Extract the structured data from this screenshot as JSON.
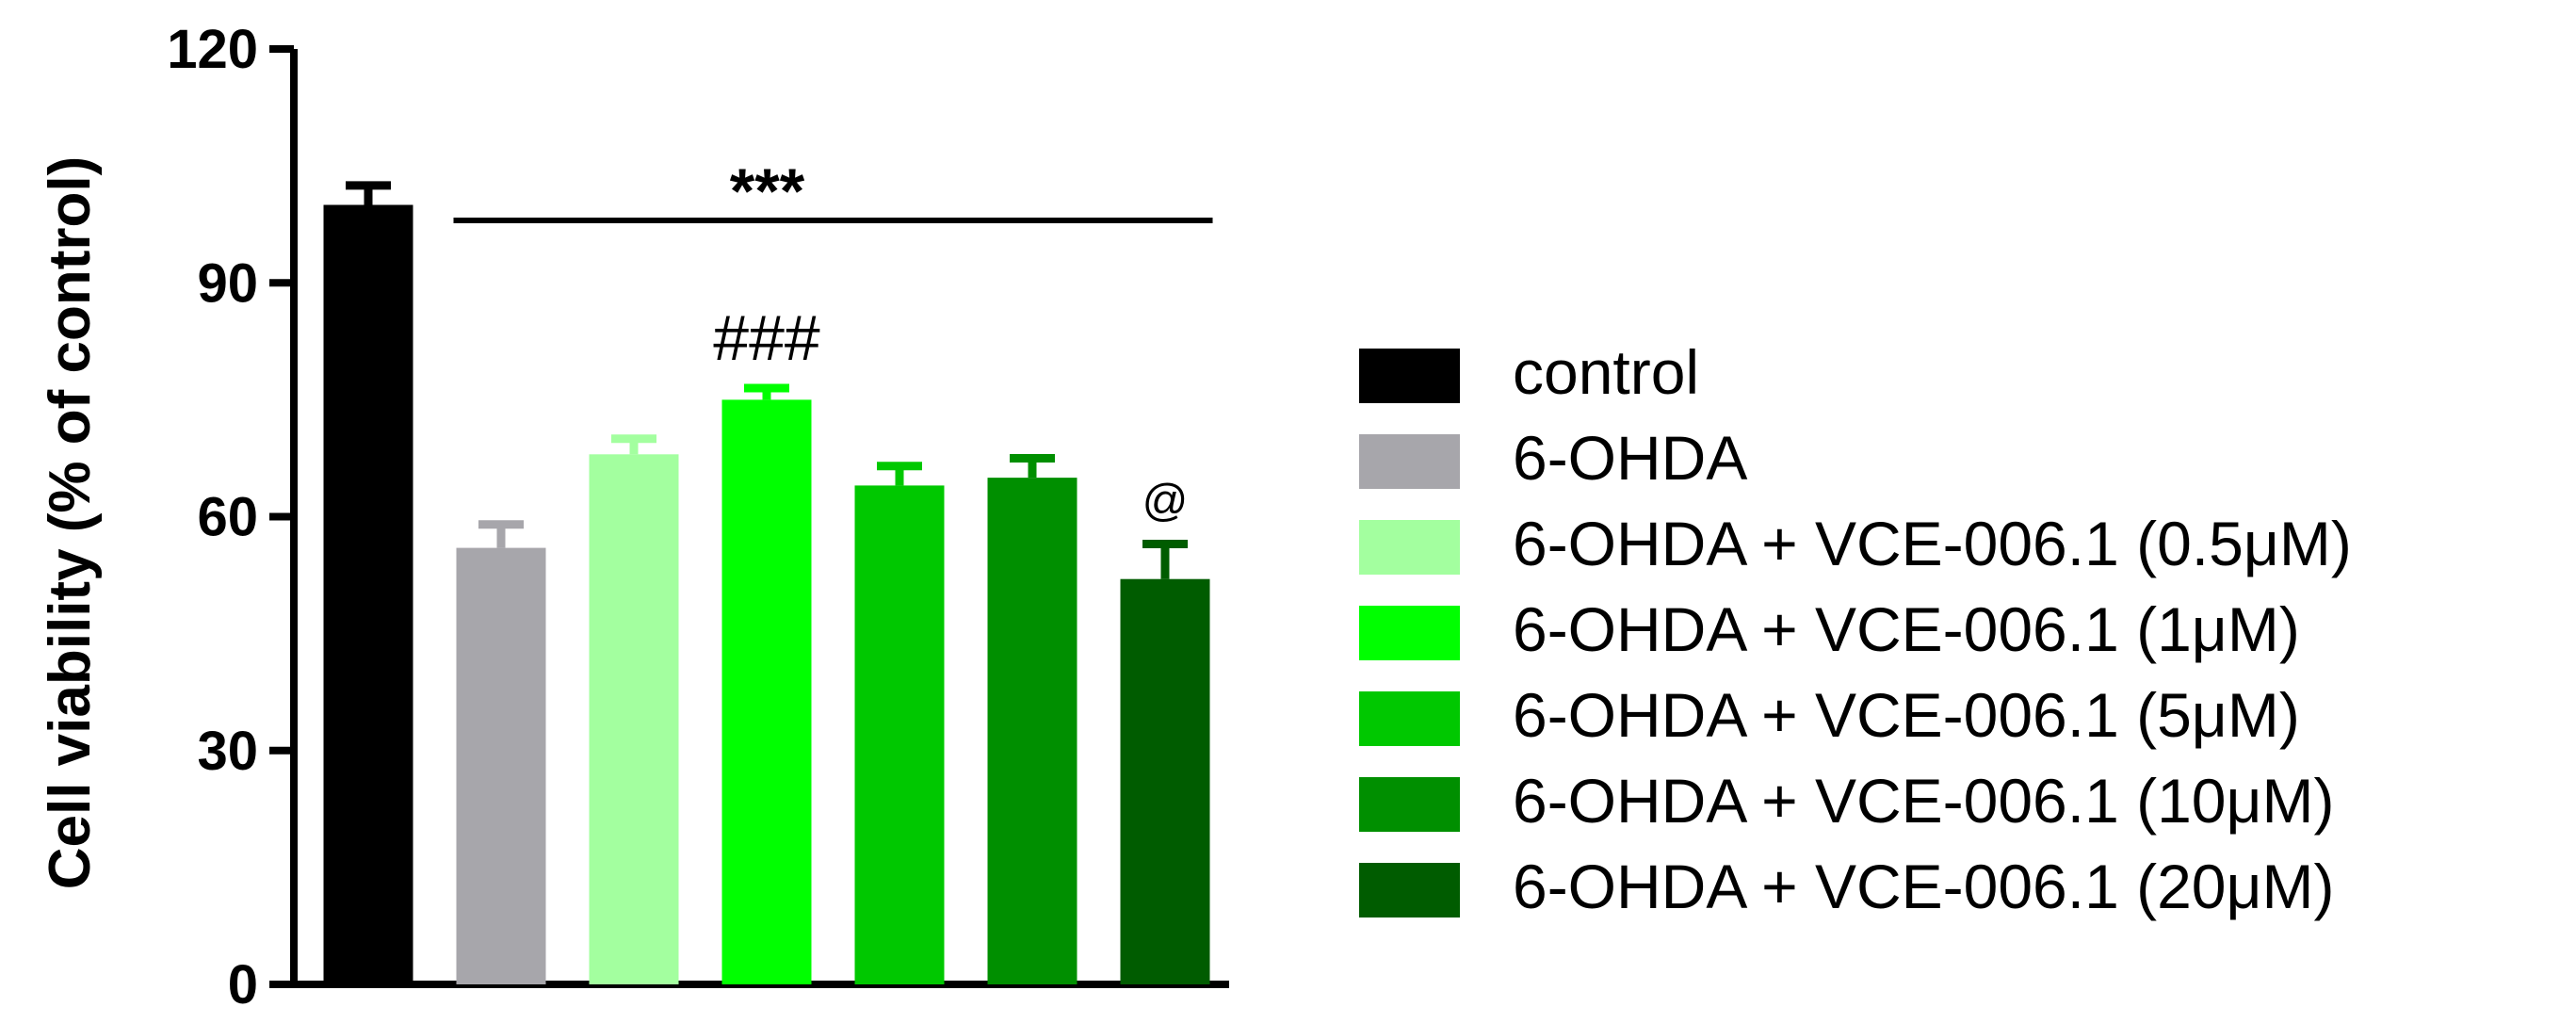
{
  "chart_data": {
    "type": "bar",
    "ylabel": "Cell viability (% of control)",
    "ylim": [
      0,
      120
    ],
    "yticks": [
      0,
      30,
      60,
      90,
      120
    ],
    "grid": false,
    "legend_position": "right",
    "categories": [
      "control",
      "6-OHDA",
      "6-OHDA + VCE-006.1 (0.5μM)",
      "6-OHDA + VCE-006.1 (1μM)",
      "6-OHDA + VCE-006.1 (5μM)",
      "6-OHDA + VCE-006.1 (10μM)",
      "6-OHDA + VCE-006.1 (20μM)"
    ],
    "values": [
      100,
      56,
      68,
      75,
      64,
      65,
      52
    ],
    "errors": [
      2.5,
      3,
      2,
      1.5,
      2.5,
      2.5,
      4.5
    ],
    "colors": [
      "#000000",
      "#a7a6ab",
      "#a3ff9f",
      "#00ff00",
      "#00c800",
      "#008f00",
      "#005c00"
    ],
    "significance_bar": {
      "label": "***",
      "from": 1,
      "to": 6,
      "y": 98
    },
    "annotations": [
      {
        "text": "###",
        "category_index": 3
      },
      {
        "text": "@",
        "category_index": 6
      }
    ]
  }
}
